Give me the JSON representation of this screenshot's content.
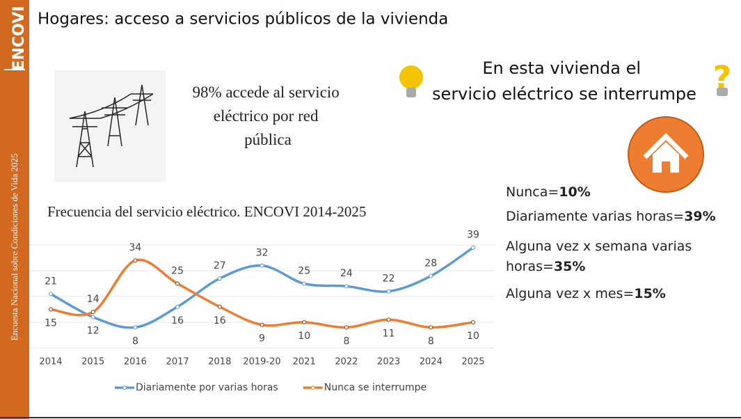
{
  "header": {
    "brand": "ENCOVI",
    "sidebar_text": "Encuesta Nacional sobre Condiciones de Vida 2025",
    "title": "Hogares: acceso a servicios públicos de la vivienda"
  },
  "access_text": "98% accede al servicio eléctrico por red pública",
  "question": "En esta vivienda el servicio eléctrico se interrumpe",
  "answers": [
    {
      "label": "Nunca=",
      "value": "10%"
    },
    {
      "label": "Diariamente varias horas=",
      "value": "39%"
    },
    {
      "label": "Alguna vez x semana varias horas=",
      "value": "35%"
    },
    {
      "label": "Alguna vez x mes=",
      "value": "15%"
    }
  ],
  "chart_data": {
    "type": "line",
    "title": "Frecuencia del servicio eléctrico. ENCOVI 2014-2025",
    "categories": [
      "2014",
      "2015",
      "2016",
      "2017",
      "2018",
      "2019-20",
      "2021",
      "2022",
      "2023",
      "2024",
      "2025"
    ],
    "series": [
      {
        "name": "Diariamente por varias horas",
        "color": "#5b9bd5",
        "values": [
          21,
          12,
          8,
          16,
          27,
          32,
          25,
          24,
          22,
          28,
          39
        ]
      },
      {
        "name": "Nunca se interrumpe",
        "color": "#ed7d31",
        "values": [
          15,
          14,
          34,
          25,
          16,
          9,
          10,
          8,
          11,
          8,
          10
        ]
      }
    ],
    "ylim": [
      0,
      40
    ],
    "smooth": true
  }
}
